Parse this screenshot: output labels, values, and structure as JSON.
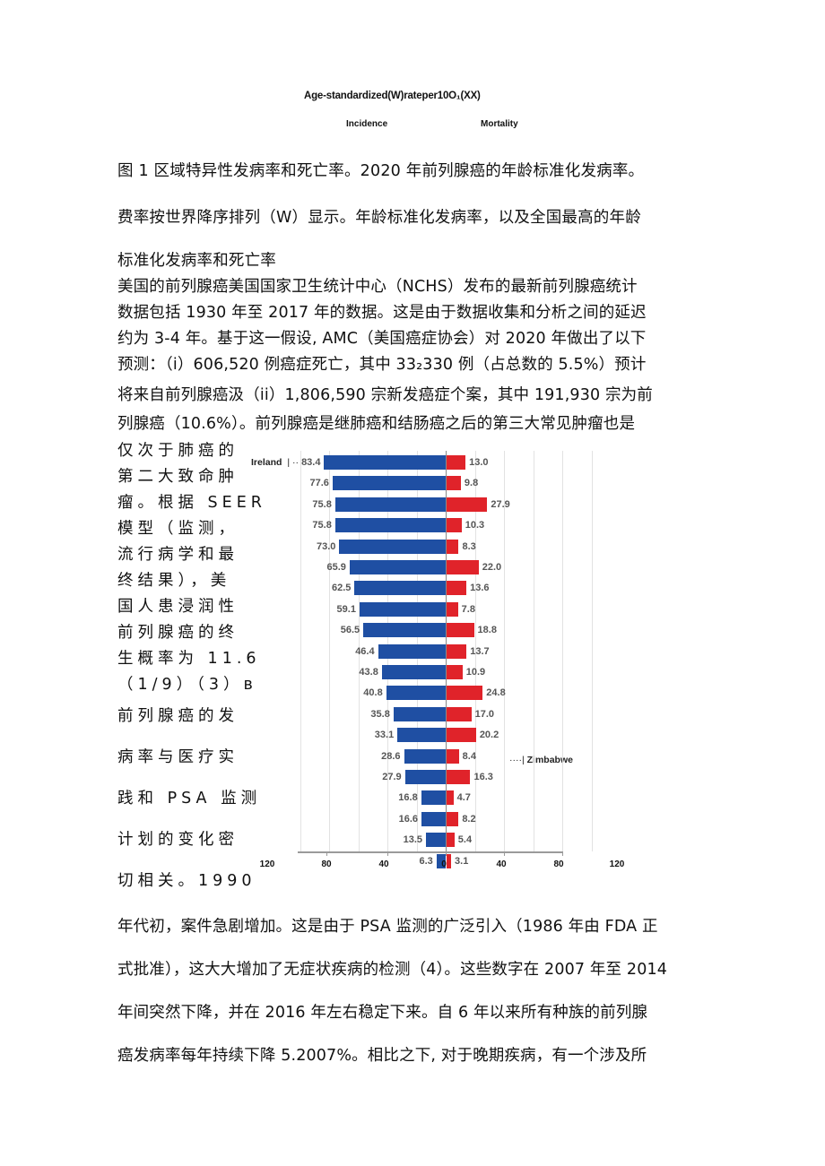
{
  "figure": {
    "title": "Age-standardized(W)rateper10O₁(XX)",
    "legend": {
      "incidence": "Incidence",
      "mortality": "Mortality"
    },
    "colors": {
      "incidence": "#1f4fa3",
      "mortality": "#e0232a"
    },
    "annotations": {
      "top_label": "Ireland",
      "top_marker": "| ··",
      "mid_label": "Zimbabwe",
      "mid_marker": "····|"
    }
  },
  "chart_data": {
    "type": "bar",
    "orientation": "horizontal-diverging",
    "title": "Age-standardized(W)rateper10O₁(XX)",
    "xlabel": "",
    "ylabel": "",
    "series": [
      {
        "name": "Incidence",
        "color": "#1f4fa3",
        "direction": "left",
        "values": [
          83.4,
          77.6,
          75.8,
          75.8,
          73.0,
          65.9,
          62.5,
          59.1,
          56.5,
          46.4,
          43.8,
          40.8,
          35.8,
          33.1,
          28.6,
          27.9,
          16.8,
          16.6,
          13.5,
          6.3
        ]
      },
      {
        "name": "Mortality",
        "color": "#e0232a",
        "direction": "right",
        "values": [
          13.0,
          9.8,
          27.9,
          10.3,
          8.3,
          22.0,
          13.6,
          7.8,
          18.8,
          13.7,
          10.9,
          24.8,
          17.0,
          20.2,
          8.4,
          16.3,
          4.7,
          8.2,
          5.4,
          3.1
        ]
      }
    ],
    "labels": {
      "incidence": [
        "83.4",
        "77.6",
        "75.8",
        "75.8",
        "73.0",
        "65.9",
        "62.5",
        "59.1",
        "56.5",
        "46.4",
        "43.8",
        "40.8",
        "35.8",
        "33.1",
        "28.6",
        "27.9",
        "16.8",
        "16.6",
        "13.5",
        "6.3"
      ],
      "mortality": [
        "13.0",
        "9.8",
        "27.9",
        "10.3",
        "8.3",
        "22.0",
        "13.6",
        "7.8",
        "18.8",
        "13.7",
        "10.9",
        "24.8",
        "17.0",
        "20.2",
        "8.4",
        "16.3",
        "4.7",
        "8.2",
        "5.4",
        "3.1"
      ]
    },
    "annotations": [
      {
        "row": 0,
        "side": "incidence",
        "text": "Ireland"
      },
      {
        "row": 15,
        "side": "mortality",
        "text": "Zimbabwe"
      }
    ],
    "x_ticks": [
      "120",
      "80",
      "40",
      "0",
      "40",
      "80",
      "120"
    ],
    "xlim": [
      -120,
      120
    ],
    "grid": true,
    "legend": [
      "Incidence",
      "Mortality"
    ],
    "legend_position": "top"
  },
  "caption": {
    "line1": "图 1 区域特异性发病率和死亡率。2020 年前列腺癌的年龄标准化发病率。",
    "line2": "费率按世界降序排列（W）显示。年龄标准化发病率，以及全国最高的年龄",
    "line3": "标准化发病率和死亡率"
  },
  "paragraph1": [
    "美国的前列腺癌美国国家卫生统计中心（NCHS）发布的最新前列腺癌统计",
    "数据包括 1930 年至 2017 年的数据。这是由于数据收集和分析之间的延迟",
    "约为 3-4 年。基于这一假设, AMC（美国癌症协会）对 2020 年做出了以下",
    "预测：（i）606,520 例癌症死亡，其中 33₂330 例（占总数的 5.5%）预计",
    "将来自前列腺癌汲（ii）1,806,590 宗新发癌症个案，其中 191,930 宗为前",
    "列腺癌（10.6%）。前列腺癌是继肺癌和结肠癌之后的第三大常见肿瘤也是"
  ],
  "sidebar_text": [
    "仅次于肺癌的",
    "第二大致命肿",
    "瘤。根据 SEER",
    "模型（监测，",
    "流行病学和最",
    "终结果），美",
    "国人患浸润性",
    "前列腺癌的终",
    "生概率为 11.6",
    "（1/9）（3）ʙ",
    "前列腺癌的发",
    "病率与医疗实",
    "践和 PSA 监测",
    "计划的变化密",
    "切相关。1990"
  ],
  "paragraph2": [
    "年代初，案件急剧增加。这是由于 PSA 监测的广泛引入（1986 年由 FDA 正",
    "式批准），这大大增加了无症状疾病的检测（4）。这些数字在 2007 年至 2014",
    "年间突然下降，并在 2016 年左右稳定下来。自 6 年以来所有种族的前列腺",
    "癌发病率每年持续下降 5.2007%。相比之下, 对于晚期疾病，有一个涉及所"
  ]
}
